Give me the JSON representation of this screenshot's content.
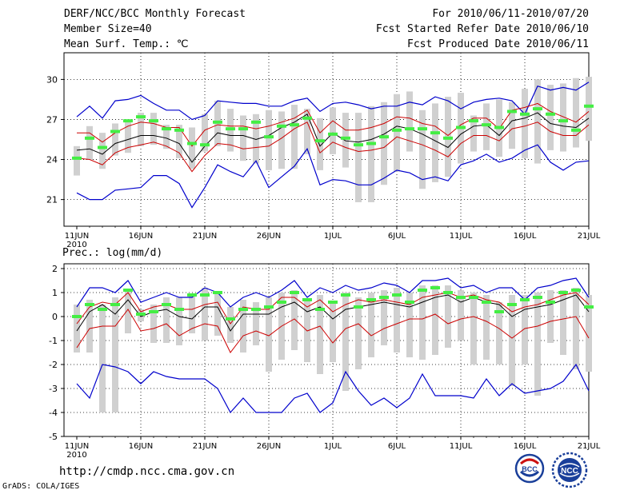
{
  "header": {
    "title": "DERF/NCC/BCC Monthly Forecast",
    "member_size": "Member Size=40",
    "variable_top": "Mean Surf. Temp.: ℃",
    "period": "For 2010/06/11-2010/07/20",
    "started": "Fcst Started Refer Date 2010/06/10",
    "produced": "Fcst Produced Date 2010/06/11"
  },
  "footer": {
    "url": "http://cmdp.ncc.cma.gov.cn",
    "grads": "GrADS: COLA/IGES",
    "logo_left": "BCC",
    "logo_right": "NCC"
  },
  "colors": {
    "spread": "#0000cc",
    "quartile": "#cc0000",
    "mean": "#000000",
    "box": "#d0d0d0",
    "marker": "#44ee44"
  },
  "chart_data": [
    {
      "type": "line",
      "title": "Mean Surf. Temp.: ℃",
      "x_tick_labels": [
        "11JUN",
        "16JUN",
        "21JUN",
        "26JUN",
        "1JUL",
        "6JUL",
        "11JUL",
        "16JUL",
        "21JUL"
      ],
      "x_year_label": "2010",
      "x_range": [
        1,
        41
      ],
      "y_ticks": [
        21,
        24,
        27,
        30
      ],
      "y_tick_labels": [
        "21",
        "24",
        "27",
        "30"
      ],
      "ylim": [
        19,
        32
      ],
      "grid": true,
      "series": [
        {
          "name": "max",
          "values": [
            27.2,
            28,
            27.1,
            28.4,
            28.5,
            28.8,
            28.2,
            27.7,
            27.7,
            27,
            27.3,
            28.4,
            28.3,
            28.2,
            28.2,
            28,
            28,
            28.4,
            28.6,
            27.6,
            28.2,
            28.3,
            28.1,
            27.8,
            28,
            28,
            28.3,
            28.1,
            28.7,
            28.4,
            27.8,
            28.3,
            28.5,
            28.6,
            28.4,
            27.4,
            29.5,
            29.2,
            29.4,
            29.2,
            29.8
          ]
        },
        {
          "name": "upper",
          "values": [
            26,
            26,
            25.3,
            26,
            26.5,
            26.8,
            26.7,
            26.4,
            26.4,
            25,
            26.2,
            26.6,
            26.5,
            26.5,
            26.3,
            26.5,
            26.8,
            27.1,
            27.7,
            26,
            26.9,
            26.2,
            26.2,
            26.4,
            26.7,
            27.2,
            27.1,
            26.7,
            26.5,
            25.8,
            26.6,
            27.1,
            27.1,
            26.3,
            27.7,
            27.9,
            28.2,
            27.6,
            27.2,
            26.8,
            27.6
          ]
        },
        {
          "name": "mean",
          "values": [
            24.7,
            24.8,
            24.4,
            25.2,
            25.5,
            25.8,
            25.8,
            25.6,
            25.2,
            23.8,
            25,
            26,
            25.8,
            25.8,
            25.5,
            25.8,
            26.4,
            26.8,
            27.4,
            25,
            26,
            25.4,
            25.3,
            25.5,
            25.9,
            26.5,
            26.3,
            25.9,
            25.4,
            24.9,
            25.9,
            26.5,
            26.6,
            25.8,
            26.9,
            27.1,
            27.5,
            26.7,
            26.5,
            26.4,
            27.1
          ]
        },
        {
          "name": "lower",
          "values": [
            24.1,
            24,
            23.6,
            24.5,
            24.9,
            25.1,
            25.3,
            25,
            24.5,
            23.1,
            24.3,
            25.2,
            25.1,
            24.8,
            24.9,
            25,
            25.6,
            26.3,
            26.8,
            24.5,
            25.3,
            24.9,
            24.6,
            24.7,
            24.9,
            25.7,
            25.4,
            25.1,
            24.7,
            24.2,
            25.2,
            25.8,
            25.8,
            25.4,
            26.3,
            26.5,
            26.8,
            26.1,
            25.8,
            25.8,
            26.6
          ]
        },
        {
          "name": "min",
          "values": [
            21.5,
            21,
            21,
            21.7,
            21.8,
            21.9,
            22.8,
            22.8,
            22.2,
            20.4,
            21.9,
            23.6,
            23.1,
            22.7,
            23.9,
            21.9,
            22.7,
            23.5,
            24.8,
            22.1,
            22.5,
            22.4,
            22.1,
            22.1,
            22.6,
            23.2,
            23,
            22.5,
            22.7,
            22.4,
            23.6,
            23.9,
            24.4,
            23.8,
            24.1,
            24.7,
            25.1,
            23.8,
            23.2,
            23.8,
            23.9
          ]
        },
        {
          "name": "box_high",
          "values": [
            25,
            26.5,
            26,
            26.7,
            27,
            27.5,
            27.5,
            26.6,
            26.6,
            26.4,
            27.4,
            28.4,
            27.8,
            27.3,
            27.4,
            27.7,
            27.6,
            28.1,
            27.8,
            27.1,
            27.9,
            27.5,
            27.5,
            28,
            28.3,
            28.9,
            29.1,
            27.7,
            28.2,
            28.7,
            29,
            27.3,
            28.2,
            28.5,
            28.3,
            29.3,
            30,
            29.6,
            29.7,
            30.1,
            30.2
          ]
        },
        {
          "name": "box_low",
          "values": [
            22.8,
            24,
            23.3,
            24.3,
            24.5,
            25,
            25.1,
            24.8,
            24.1,
            23.3,
            24.6,
            25,
            24.6,
            23.9,
            23.7,
            23.2,
            23.3,
            23.3,
            24.4,
            23.2,
            24.4,
            23.4,
            20.8,
            20.8,
            22.1,
            23.1,
            24.6,
            21.8,
            22.3,
            22.7,
            23.7,
            24.6,
            24.7,
            24.2,
            24.8,
            24.1,
            23.7,
            24.7,
            24.6,
            24.9,
            25.4
          ]
        },
        {
          "name": "marker",
          "values": [
            24.1,
            25.6,
            24.9,
            26.1,
            26.9,
            27.2,
            26.9,
            26.3,
            26.2,
            25.2,
            25.1,
            26.8,
            26.3,
            26.3,
            26.8,
            25.7,
            26.5,
            26.6,
            27.1,
            25.4,
            25.9,
            25.6,
            25.1,
            25.2,
            25.7,
            26.2,
            26.3,
            26.3,
            26,
            25.6,
            26.4,
            26.9,
            26.6,
            26.4,
            27.6,
            27.4,
            27.8,
            27.4,
            26.9,
            26.2,
            28
          ]
        }
      ]
    },
    {
      "type": "line",
      "title": "Prec.: log(mm/d)",
      "x_tick_labels": [
        "11JUN",
        "16JUN",
        "21JUN",
        "26JUN",
        "1JUL",
        "6JUL",
        "11JUL",
        "16JUL",
        "21JUL"
      ],
      "x_year_label": "2010",
      "x_range": [
        1,
        41
      ],
      "y_ticks": [
        -5,
        -4,
        -3,
        -2,
        -1,
        0,
        1,
        2
      ],
      "y_tick_labels": [
        "-5",
        "-4",
        "-3",
        "-2",
        "-1",
        "0",
        "1",
        "2"
      ],
      "ylim": [
        -5,
        2.2
      ],
      "grid": true,
      "series": [
        {
          "name": "max",
          "values": [
            0.4,
            1.2,
            1.2,
            1,
            1.5,
            0.6,
            0.8,
            1,
            0.8,
            0.8,
            1.2,
            1,
            0.4,
            0.8,
            1,
            0.8,
            1.1,
            1.5,
            0.8,
            1.2,
            1,
            1.3,
            1.1,
            1.2,
            1.4,
            1.3,
            1,
            1.5,
            1.5,
            1.6,
            1.2,
            1.3,
            1,
            1.2,
            1.2,
            0.7,
            1.2,
            1.3,
            1.5,
            1.6,
            0.8
          ]
        },
        {
          "name": "upper",
          "values": [
            -0.3,
            0.4,
            0.6,
            0.5,
            1,
            0.2,
            0.4,
            0.5,
            0.3,
            0.3,
            0.5,
            0.6,
            -0.3,
            0.4,
            0.3,
            0.3,
            0.8,
            0.8,
            0.4,
            0.7,
            0.2,
            0.5,
            0.7,
            0.6,
            0.7,
            0.6,
            0.5,
            0.8,
            0.9,
            1,
            0.8,
            0.9,
            0.7,
            0.6,
            0.2,
            0.4,
            0.5,
            0.7,
            0.9,
            1,
            0.5
          ]
        },
        {
          "name": "mean",
          "values": [
            -0.6,
            0.2,
            0.5,
            0.1,
            0.7,
            0,
            0.2,
            0.3,
            0,
            -0.1,
            0.4,
            0.4,
            -0.6,
            0.1,
            0.1,
            0.1,
            0.4,
            0.6,
            0.2,
            0.4,
            -0.1,
            0.3,
            0.4,
            0.5,
            0.6,
            0.5,
            0.4,
            0.6,
            0.8,
            0.9,
            0.6,
            0.8,
            0.6,
            0.5,
            0,
            0.3,
            0.4,
            0.5,
            0.7,
            0.9,
            0.2
          ]
        },
        {
          "name": "lower",
          "values": [
            -1.3,
            -0.5,
            -0.4,
            -0.4,
            0.3,
            -0.6,
            -0.5,
            -0.3,
            -0.8,
            -0.5,
            -0.3,
            -0.4,
            -1.5,
            -0.8,
            -0.6,
            -0.8,
            -0.4,
            -0.1,
            -0.6,
            -0.4,
            -1.1,
            -0.5,
            -0.3,
            -0.8,
            -0.5,
            -0.3,
            -0.1,
            -0.1,
            0.1,
            -0.3,
            -0.1,
            0,
            -0.2,
            -0.5,
            -0.9,
            -0.5,
            -0.4,
            -0.2,
            -0.1,
            0,
            -0.9
          ]
        },
        {
          "name": "min",
          "values": [
            -2.8,
            -3.4,
            -2,
            -2.1,
            -2.3,
            -2.8,
            -2.3,
            -2.5,
            -2.6,
            -2.6,
            -2.6,
            -3,
            -4,
            -3.4,
            -4,
            -4,
            -4,
            -3.4,
            -3.2,
            -4,
            -3.6,
            -2.3,
            -3.1,
            -3.7,
            -3.4,
            -3.8,
            -3.4,
            -2.4,
            -3.3,
            -3.3,
            -3.3,
            -3.4,
            -2.6,
            -3.3,
            -2.8,
            -3.2,
            -3.1,
            -3,
            -2.7,
            -2,
            -3.1
          ]
        },
        {
          "name": "box_high",
          "values": [
            0.5,
            0.7,
            0.5,
            0.8,
            1.1,
            0.3,
            0.5,
            0.8,
            0.8,
            0.9,
            1.2,
            1,
            0.4,
            0.7,
            0.6,
            0.8,
            1,
            1.1,
            0.7,
            0.9,
            0.6,
            1,
            0.8,
            1,
            1.1,
            1.2,
            1,
            1.3,
            1.3,
            1.3,
            1.1,
            1,
            0.9,
            0.6,
            0.9,
            0.9,
            1,
            1.1,
            1.1,
            1.2,
            0.9
          ]
        },
        {
          "name": "box_low",
          "values": [
            -1.5,
            -1.5,
            -4,
            -4,
            -0.7,
            -0.2,
            -1.1,
            -1.1,
            -1.2,
            -0.7,
            -1,
            -0.8,
            -1.1,
            -1.5,
            -1.2,
            -2.3,
            -1.8,
            -1.4,
            -1.9,
            -2.4,
            -1.9,
            -3.1,
            -2.2,
            -1.7,
            -1.2,
            -1.5,
            -1.7,
            -1.8,
            -1.6,
            -1.3,
            -1,
            -2,
            -1.8,
            -2,
            -2.9,
            -2,
            -3.3,
            -1.1,
            -1.6,
            -2.2,
            -2.3
          ]
        },
        {
          "name": "marker",
          "values": [
            0,
            0.5,
            0.3,
            0.5,
            1.1,
            0.1,
            0.2,
            0.5,
            0.3,
            0.9,
            0.9,
            1,
            -0.1,
            0.3,
            0.3,
            0.4,
            0.6,
            1,
            0.7,
            0.3,
            0.6,
            0.9,
            0.4,
            0.7,
            0.8,
            0.9,
            0.6,
            1.1,
            1.2,
            1,
            0.8,
            0.8,
            0.6,
            0.2,
            0.5,
            0.7,
            0.8,
            0.6,
            1,
            1.1,
            0.4
          ]
        }
      ]
    }
  ]
}
